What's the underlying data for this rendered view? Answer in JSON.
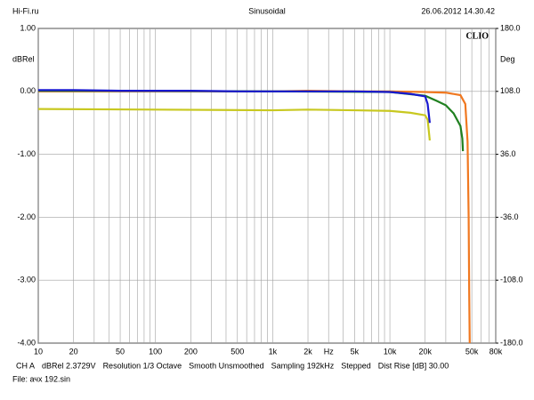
{
  "chart_data": {
    "type": "line",
    "header": [
      "Hi-Fi.ru",
      "Sinusoidal",
      "26.06.2012 14.30.42"
    ],
    "brand": "CLIO",
    "ylabel": "dBRel",
    "y2label": "Deg",
    "footer": [
      "CH A",
      "dBRel 2.3729V",
      "Resolution 1/3 Octave",
      "Smooth Unsmoothed",
      "Sampling 192kHz",
      "Stepped",
      "Dist Rise [dB] 30.00"
    ],
    "file": "File: ачх 192.sin",
    "xscale": "log",
    "xlim": [
      10,
      80000
    ],
    "xticks": [
      10,
      20,
      50,
      100,
      200,
      500,
      {
        "value": 1000,
        "label": "1k"
      },
      {
        "value": 2000,
        "label": "2k"
      },
      {
        "value": 3000,
        "label": "Hz"
      },
      {
        "value": 5000,
        "label": "5k"
      },
      {
        "value": 10000,
        "label": "10k"
      },
      {
        "value": 20000,
        "label": "20k"
      },
      {
        "value": 50000,
        "label": "50k"
      },
      {
        "value": 80000,
        "label": "80k"
      }
    ],
    "xminor_ticks": [
      30,
      40,
      60,
      70,
      80,
      90,
      300,
      400,
      600,
      700,
      800,
      900,
      4000,
      6000,
      7000,
      8000,
      9000,
      30000,
      40000,
      60000,
      70000
    ],
    "ylim": [
      -4,
      1
    ],
    "yticks": [
      {
        "value": 1,
        "label": "1.00"
      },
      {
        "value": 0,
        "label": "0.00"
      },
      {
        "value": -1,
        "label": "-1.00"
      },
      {
        "value": -2,
        "label": "-2.00"
      },
      {
        "value": -3,
        "label": "-3.00"
      },
      {
        "value": -4,
        "label": "-4.00"
      }
    ],
    "y2lim": [
      -180,
      180
    ],
    "y2ticks": [
      {
        "value": 180,
        "label": "180.0"
      },
      {
        "value": 108,
        "label": "108.0"
      },
      {
        "value": 36,
        "label": "36.0"
      },
      {
        "value": -36,
        "label": "-36.0"
      },
      {
        "value": -108,
        "label": "-108.0"
      },
      {
        "value": -180,
        "label": "-180.0"
      }
    ],
    "grid": true,
    "series": [
      {
        "color": "#f07820",
        "x": [
          10,
          100,
          1000,
          2000,
          5000,
          10000,
          20000,
          30000,
          40000,
          44000,
          46000,
          47000,
          47500,
          48000
        ],
        "values": [
          0.0,
          0.0,
          0.0,
          0.01,
          0.0,
          0.0,
          -0.01,
          -0.02,
          -0.06,
          -0.2,
          -0.8,
          -2.0,
          -3.2,
          -4.0
        ]
      },
      {
        "color": "#208020",
        "x": [
          10,
          1000,
          10000,
          20000,
          25000,
          30000,
          35000,
          40000,
          41500,
          42000
        ],
        "values": [
          0.01,
          0.0,
          -0.01,
          -0.07,
          -0.15,
          -0.22,
          -0.35,
          -0.55,
          -0.75,
          -0.95
        ]
      },
      {
        "color": "#c8c820",
        "x": [
          10,
          100,
          1000,
          2000,
          5000,
          10000,
          15000,
          20000,
          21000,
          21900
        ],
        "values": [
          -0.28,
          -0.29,
          -0.3,
          -0.29,
          -0.3,
          -0.31,
          -0.34,
          -0.38,
          -0.45,
          -0.78
        ]
      },
      {
        "color": "#1818d0",
        "x": [
          10,
          20,
          50,
          100,
          200,
          500,
          1000,
          2000,
          5000,
          10000,
          15000,
          20000,
          21000,
          21900
        ],
        "values": [
          0.02,
          0.02,
          0.01,
          0.01,
          0.01,
          0.0,
          0.0,
          0.0,
          0.0,
          -0.01,
          -0.04,
          -0.08,
          -0.2,
          -0.5
        ]
      }
    ]
  }
}
